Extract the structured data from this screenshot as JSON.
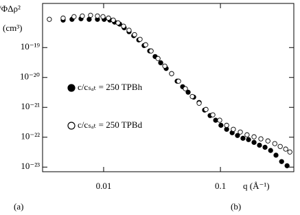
{
  "chart_data": {
    "type": "scatter",
    "y_label": "/ΦΔρ²",
    "y_unit": "(cm³)",
    "x_label": "q (Å⁻¹)",
    "annotations": [
      "(a)",
      "(b)"
    ],
    "log_x": true,
    "log_y": true,
    "legend": "left",
    "xlim": [
      0.003,
      0.425
    ],
    "ylim": [
      7e-24,
      3e-18
    ],
    "xticks": [
      0.01,
      0.1
    ],
    "yticks": [
      {
        "value": 1e-19,
        "label": "10⁻¹⁹"
      },
      {
        "value": 1e-20,
        "label": "10⁻²⁰"
      },
      {
        "value": 1e-21,
        "label": "10⁻²¹"
      },
      {
        "value": 1e-22,
        "label": "10⁻²²"
      },
      {
        "value": 1e-23,
        "label": "10⁻²³"
      }
    ],
    "series": [
      {
        "name": "c/cₛₐₜ = 250 TPBh",
        "color": "#000000",
        "marker": "filled",
        "x": [
          0.0045,
          0.00536,
          0.0064,
          0.00752,
          0.00885,
          0.0101,
          0.0113,
          0.0124,
          0.0137,
          0.015,
          0.0165,
          0.0181,
          0.02,
          0.0222,
          0.0248,
          0.0276,
          0.0308,
          0.0343,
          0.0382,
          0.0426,
          0.0475,
          0.0529,
          0.059,
          0.0657,
          0.0732,
          0.0816,
          0.091,
          0.101,
          0.113,
          0.126,
          0.14,
          0.156,
          0.174,
          0.194,
          0.216,
          0.241,
          0.269,
          0.299,
          0.334,
          0.372
        ],
        "values": [
          8.3e-19,
          8.8e-19,
          9.2e-19,
          8.8e-19,
          8.8e-19,
          8.8e-19,
          8.3e-19,
          7.1e-19,
          6.1e-19,
          4.6e-19,
          3.4e-19,
          2.5e-19,
          1.8e-19,
          1.17e-19,
          7.7e-20,
          5e-20,
          3.1e-20,
          2e-20,
          1.34e-20,
          7.5e-21,
          4.9e-21,
          3.2e-21,
          2.2e-21,
          1.45e-21,
          8.1e-22,
          5.3e-22,
          3.7e-22,
          2.5e-22,
          1.84e-22,
          1.41e-22,
          1.14e-22,
          9.2e-23,
          8.3e-23,
          6.7e-23,
          5.4e-23,
          4.6e-23,
          3.6e-23,
          2.5e-23,
          1.53e-23,
          1.11e-23
        ]
      },
      {
        "name": "c/cₛₐₜ = 250 TPBd",
        "color": "#000000",
        "marker": "open",
        "x": [
          0.00343,
          0.0045,
          0.00558,
          0.00657,
          0.00773,
          0.00885,
          0.00987,
          0.011,
          0.0121,
          0.0133,
          0.0148,
          0.0165,
          0.0184,
          0.0205,
          0.0229,
          0.0255,
          0.0292,
          0.0334,
          0.0382,
          0.0438,
          0.0501,
          0.0574,
          0.0657,
          0.0752,
          0.0861,
          0.0986,
          0.113,
          0.129,
          0.148,
          0.169,
          0.194,
          0.222,
          0.255,
          0.292,
          0.325,
          0.362,
          0.393
        ],
        "values": [
          8.8e-19,
          9.7e-19,
          1.08e-18,
          1.14e-18,
          1.2e-18,
          1.14e-18,
          1.08e-18,
          9.7e-19,
          8.3e-19,
          6.7e-19,
          5.2e-19,
          3.8e-19,
          2.7e-19,
          1.89e-19,
          1.24e-19,
          7.7e-20,
          4.3e-20,
          2.4e-20,
          1.34e-20,
          7.5e-21,
          4.2e-21,
          2.3e-21,
          1.37e-21,
          8.5e-22,
          5.6e-22,
          3.7e-22,
          2.5e-22,
          1.84e-22,
          1.49e-22,
          1.2e-22,
          1.03e-22,
          8.8e-23,
          7.5e-23,
          6.1e-23,
          4.9e-23,
          4e-23,
          3.2e-23
        ]
      }
    ]
  }
}
